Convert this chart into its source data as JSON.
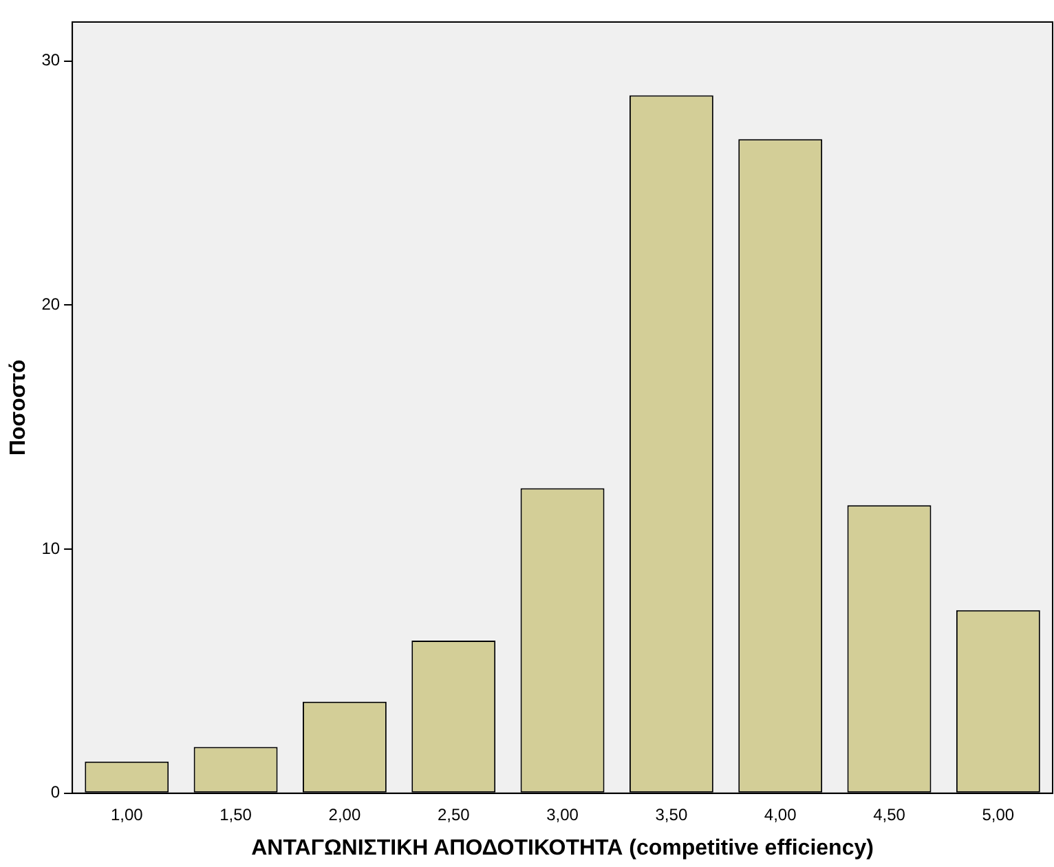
{
  "chart_data": {
    "type": "bar",
    "xlabel": "ΑΝΤΑΓΩΝΙΣΤΙΚΗ ΑΠΟΔΟΤΙΚΟΤΗΤΑ (competitive efficiency)",
    "ylabel": "Ποσοστό",
    "categories": [
      "1,00",
      "1,50",
      "2,00",
      "2,50",
      "3,00",
      "3,50",
      "4,00",
      "4,50",
      "5,00"
    ],
    "values": [
      1.3,
      1.9,
      3.75,
      6.25,
      12.5,
      28.6,
      26.8,
      11.8,
      7.5
    ],
    "color": "#d3ce97",
    "ylim": [
      0,
      31.6
    ],
    "yticks": [
      0,
      10,
      20,
      30
    ],
    "grid": false,
    "legend": false
  }
}
